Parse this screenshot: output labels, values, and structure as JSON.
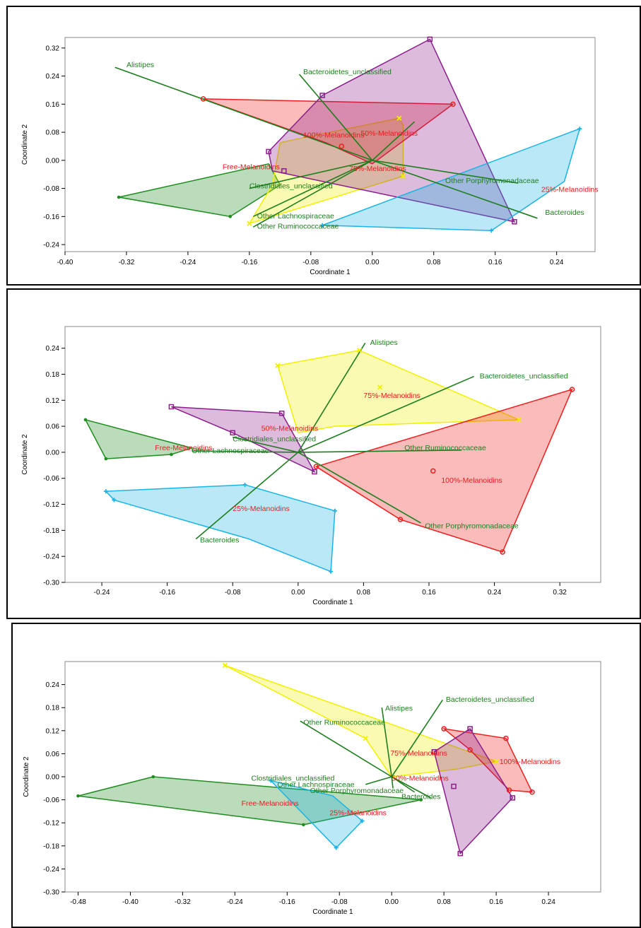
{
  "colors": {
    "Free-Melanoidins": "#1e8c1e",
    "25%-Melanoidins": "#1ab4e6",
    "50%-Melanoidins": "#8c1e8c",
    "75%-Melanoidins": "#f0f000",
    "100%-Melanoidins": "#f01e1e",
    "biplot": "#1e7e1e",
    "label_red": "#e02020"
  },
  "chart_data": [
    {
      "type": "scatter",
      "xlabel": "Coordinate 1",
      "ylabel": "Coordinate 2",
      "xlim": [
        -0.4,
        0.29
      ],
      "ylim": [
        -0.26,
        0.35
      ],
      "xticks": [
        "-0.40",
        "-0.32",
        "-0.24",
        "-0.16",
        "-0.08",
        "0.00",
        "0.08",
        "0.16",
        "0.24"
      ],
      "xtick_values": [
        -0.4,
        -0.32,
        -0.24,
        -0.16,
        -0.08,
        0.0,
        0.08,
        0.16,
        0.24
      ],
      "yticks": [
        "0.32",
        "0.24",
        "0.16",
        "0.08",
        "0.00",
        "-0.08",
        "-0.16",
        "-0.24"
      ],
      "ytick_values": [
        0.32,
        0.24,
        0.16,
        0.08,
        0.0,
        -0.08,
        -0.16,
        -0.24
      ],
      "groups": [
        {
          "name": "Free-Melanoidins",
          "marker": "dot",
          "hull": [
            [
              -0.33,
              -0.105
            ],
            [
              -0.185,
              -0.16
            ],
            [
              -0.12,
              -0.07
            ],
            [
              -0.135,
              -0.01
            ]
          ],
          "points": [
            [
              -0.33,
              -0.105
            ],
            [
              -0.185,
              -0.16
            ]
          ],
          "label": [
            -0.195,
            -0.025
          ]
        },
        {
          "name": "75%-Melanoidins",
          "marker": "x",
          "hull": [
            [
              -0.16,
              -0.18
            ],
            [
              -0.13,
              -0.07
            ],
            [
              -0.12,
              0.05
            ],
            [
              -0.1,
              0.06
            ],
            [
              0.035,
              0.12
            ],
            [
              0.04,
              0.1
            ],
            [
              0.04,
              -0.045
            ]
          ],
          "points": [
            [
              -0.16,
              -0.18
            ],
            [
              0.035,
              0.12
            ],
            [
              0.04,
              -0.045
            ]
          ],
          "label": [
            -0.03,
            -0.03
          ]
        },
        {
          "name": "100%-Melanoidins",
          "marker": "circle",
          "hull": [
            [
              -0.22,
              0.175
            ],
            [
              0.105,
              0.16
            ],
            [
              0.0,
              -0.01
            ],
            [
              -0.06,
              0.05
            ]
          ],
          "points": [
            [
              -0.22,
              0.175
            ],
            [
              0.105,
              0.16
            ],
            [
              -0.04,
              0.04
            ]
          ],
          "label": [
            -0.09,
            0.065
          ]
        },
        {
          "name": "50%-Melanoidins",
          "marker": "square",
          "hull": [
            [
              0.075,
              0.345
            ],
            [
              -0.065,
              0.185
            ],
            [
              -0.135,
              0.025
            ],
            [
              -0.13,
              -0.03
            ],
            [
              0.185,
              -0.175
            ]
          ],
          "points": [
            [
              0.075,
              0.345
            ],
            [
              -0.065,
              0.185
            ],
            [
              -0.135,
              0.025
            ],
            [
              -0.115,
              -0.03
            ],
            [
              0.185,
              -0.175
            ]
          ],
          "label": [
            -0.015,
            0.07
          ]
        },
        {
          "name": "25%-Melanoidins",
          "marker": "plus",
          "hull": [
            [
              -0.065,
              -0.185
            ],
            [
              0.155,
              -0.2
            ],
            [
              0.25,
              -0.06
            ],
            [
              0.27,
              0.09
            ]
          ],
          "points": [
            [
              -0.065,
              -0.185
            ],
            [
              0.155,
              -0.2
            ],
            [
              0.27,
              0.09
            ]
          ],
          "label": [
            0.22,
            -0.09
          ]
        }
      ],
      "vectors_origin": [
        0.0,
        0.0
      ],
      "vectors": [
        {
          "name": "Alistipes",
          "end": [
            -0.335,
            0.265
          ],
          "label": [
            -0.32,
            0.265
          ]
        },
        {
          "name": "Bacteroidetes_unclassified",
          "end": [
            -0.095,
            0.245
          ],
          "label": [
            -0.09,
            0.245
          ]
        },
        {
          "name": "Bacteroides",
          "end": [
            0.215,
            -0.165
          ],
          "label": [
            0.225,
            -0.155
          ]
        },
        {
          "name": "Other Porphyromonadaceae",
          "end": [
            0.19,
            -0.065
          ],
          "label": [
            0.095,
            -0.065
          ]
        },
        {
          "name": "Clostridiales_unclassified",
          "end": [
            -0.16,
            -0.08
          ],
          "label": [
            -0.16,
            -0.08
          ]
        },
        {
          "name": "Other Lachnospiraceae",
          "end": [
            -0.155,
            -0.16
          ],
          "label": [
            -0.15,
            -0.165
          ]
        },
        {
          "name": "Other Ruminococcaceae",
          "end": [
            -0.155,
            -0.19
          ],
          "label": [
            -0.15,
            -0.195
          ]
        }
      ],
      "extra_vector_end": [
        0.055,
        0.11
      ]
    },
    {
      "type": "scatter",
      "xlabel": "Coordinate 1",
      "ylabel": "Coordinate 2",
      "xlim": [
        -0.285,
        0.37
      ],
      "ylim": [
        -0.3,
        0.29
      ],
      "xticks": [
        "-0.24",
        "-0.16",
        "-0.08",
        "0.00",
        "0.08",
        "0.16",
        "0.24",
        "0.32"
      ],
      "xtick_values": [
        -0.24,
        -0.16,
        -0.08,
        0.0,
        0.08,
        0.16,
        0.24,
        0.32
      ],
      "yticks": [
        "0.24",
        "0.18",
        "0.12",
        "0.06",
        "0.00",
        "-0.06",
        "-0.12",
        "-0.18",
        "-0.24",
        "-0.30"
      ],
      "ytick_values": [
        0.24,
        0.18,
        0.12,
        0.06,
        0.0,
        -0.06,
        -0.12,
        -0.18,
        -0.24,
        -0.3
      ],
      "groups": [
        {
          "name": "75%-Melanoidins",
          "marker": "x",
          "hull": [
            [
              -0.025,
              0.2
            ],
            [
              0.075,
              0.235
            ],
            [
              0.27,
              0.075
            ],
            [
              0.045,
              0.06
            ],
            [
              0.0,
              0.045
            ]
          ],
          "points": [
            [
              -0.025,
              0.2
            ],
            [
              0.075,
              0.235
            ],
            [
              0.27,
              0.075
            ],
            [
              0.1,
              0.15
            ]
          ],
          "label": [
            0.08,
            0.125
          ]
        },
        {
          "name": "100%-Melanoidins",
          "marker": "circle",
          "hull": [
            [
              0.335,
              0.145
            ],
            [
              0.25,
              -0.23
            ],
            [
              0.125,
              -0.155
            ],
            [
              0.022,
              -0.033
            ]
          ],
          "points": [
            [
              0.335,
              0.145
            ],
            [
              0.25,
              -0.23
            ],
            [
              0.125,
              -0.155
            ],
            [
              0.022,
              -0.033
            ],
            [
              0.165,
              -0.043
            ]
          ],
          "label": [
            0.175,
            -0.07
          ]
        },
        {
          "name": "50%-Melanoidins",
          "marker": "square",
          "hull": [
            [
              -0.155,
              0.105
            ],
            [
              -0.02,
              0.09
            ],
            [
              0.02,
              -0.045
            ],
            [
              -0.08,
              0.045
            ]
          ],
          "points": [
            [
              -0.155,
              0.105
            ],
            [
              -0.02,
              0.09
            ],
            [
              0.02,
              -0.045
            ],
            [
              -0.08,
              0.045
            ]
          ],
          "label": [
            -0.045,
            0.05
          ]
        },
        {
          "name": "Free-Melanoidins",
          "marker": "dot",
          "hull": [
            [
              -0.26,
              0.075
            ],
            [
              -0.13,
              0.01
            ],
            [
              -0.155,
              -0.005
            ],
            [
              -0.235,
              -0.015
            ]
          ],
          "points": [
            [
              -0.26,
              0.075
            ],
            [
              -0.235,
              -0.015
            ],
            [
              -0.155,
              -0.005
            ]
          ],
          "label": [
            -0.175,
            0.005
          ]
        },
        {
          "name": "25%-Melanoidins",
          "marker": "plus",
          "hull": [
            [
              -0.235,
              -0.09
            ],
            [
              -0.065,
              -0.075
            ],
            [
              0.045,
              -0.135
            ],
            [
              0.04,
              -0.275
            ],
            [
              -0.06,
              -0.2
            ],
            [
              -0.225,
              -0.11
            ]
          ],
          "points": [
            [
              -0.235,
              -0.09
            ],
            [
              -0.225,
              -0.11
            ],
            [
              -0.065,
              -0.075
            ],
            [
              0.045,
              -0.135
            ],
            [
              0.04,
              -0.275
            ]
          ],
          "label": [
            -0.08,
            -0.135
          ]
        }
      ],
      "vectors_origin": [
        0.0,
        0.0
      ],
      "vectors": [
        {
          "name": "Alistipes",
          "end": [
            0.082,
            0.252
          ],
          "label": [
            0.088,
            0.248
          ]
        },
        {
          "name": "Bacteroidetes_unclassified",
          "end": [
            0.215,
            0.175
          ],
          "label": [
            0.222,
            0.17
          ]
        },
        {
          "name": "Other Ruminococcaceae",
          "end": [
            0.2,
            0.005
          ],
          "label": [
            0.13,
            0.005
          ]
        },
        {
          "name": "Other Porphyromonadaceae",
          "end": [
            0.15,
            -0.163
          ],
          "label": [
            0.155,
            -0.175
          ]
        },
        {
          "name": "Bacteroides",
          "end": [
            -0.125,
            -0.2
          ],
          "label": [
            -0.12,
            -0.208
          ]
        },
        {
          "name": "Clostridiales_unclassified",
          "end": [
            -0.08,
            0.035
          ],
          "label": [
            -0.08,
            0.025
          ]
        },
        {
          "name": "Other Lachnospiraceae",
          "end": [
            -0.13,
            0.003
          ],
          "label": [
            -0.13,
            -0.002
          ]
        }
      ]
    },
    {
      "type": "scatter",
      "xlabel": "Coordinate 1",
      "ylabel": "Coordinate 2",
      "xlim": [
        -0.5,
        0.32
      ],
      "ylim": [
        -0.3,
        0.3
      ],
      "xticks": [
        "-0.48",
        "-0.40",
        "-0.32",
        "-0.24",
        "-0.16",
        "-0.08",
        "0.00",
        "0.08",
        "0.16",
        "0.24"
      ],
      "xtick_values": [
        -0.48,
        -0.4,
        -0.32,
        -0.24,
        -0.16,
        -0.08,
        0.0,
        0.08,
        0.16,
        0.24
      ],
      "yticks": [
        "0.24",
        "0.18",
        "0.12",
        "0.06",
        "0.00",
        "-0.06",
        "-0.12",
        "-0.18",
        "-0.24",
        "-0.30"
      ],
      "ytick_values": [
        0.24,
        0.18,
        0.12,
        0.06,
        0.0,
        -0.06,
        -0.12,
        -0.18,
        -0.24,
        -0.3
      ],
      "groups": [
        {
          "name": "75%-Melanoidins",
          "marker": "x",
          "hull": [
            [
              -0.255,
              0.29
            ],
            [
              0.16,
              0.04
            ],
            [
              0.1,
              0.02
            ],
            [
              0.0,
              0.0
            ],
            [
              -0.04,
              0.1
            ]
          ],
          "points": [
            [
              -0.255,
              0.29
            ],
            [
              0.16,
              0.04
            ],
            [
              -0.04,
              0.1
            ]
          ],
          "label": [
            -0.002,
            0.055
          ]
        },
        {
          "name": "100%-Melanoidins",
          "marker": "circle",
          "hull": [
            [
              0.08,
              0.125
            ],
            [
              0.175,
              0.1
            ],
            [
              0.215,
              -0.04
            ],
            [
              0.18,
              -0.035
            ],
            [
              0.12,
              0.07
            ]
          ],
          "points": [
            [
              0.08,
              0.125
            ],
            [
              0.175,
              0.1
            ],
            [
              0.215,
              -0.04
            ],
            [
              0.18,
              -0.035
            ],
            [
              0.12,
              0.07
            ]
          ],
          "label": [
            0.165,
            0.033
          ]
        },
        {
          "name": "50%-Melanoidins",
          "marker": "square",
          "hull": [
            [
              0.065,
              0.065
            ],
            [
              0.12,
              0.125
            ],
            [
              0.185,
              -0.055
            ],
            [
              0.105,
              -0.2
            ]
          ],
          "points": [
            [
              0.065,
              0.065
            ],
            [
              0.12,
              0.125
            ],
            [
              0.185,
              -0.055
            ],
            [
              0.105,
              -0.2
            ],
            [
              0.095,
              -0.025
            ]
          ],
          "label": [
            0.0,
            -0.01
          ]
        },
        {
          "name": "Free-Melanoidins",
          "marker": "dot",
          "hull": [
            [
              -0.365,
              0.0
            ],
            [
              -0.48,
              -0.05
            ],
            [
              -0.135,
              -0.125
            ],
            [
              0.045,
              -0.06
            ]
          ],
          "points": [
            [
              -0.365,
              0.0
            ],
            [
              -0.48,
              -0.05
            ],
            [
              -0.135,
              -0.125
            ],
            [
              0.045,
              -0.06
            ]
          ],
          "label": [
            -0.23,
            -0.075
          ]
        },
        {
          "name": "25%-Melanoidins",
          "marker": "plus",
          "hull": [
            [
              -0.185,
              -0.01
            ],
            [
              -0.09,
              -0.05
            ],
            [
              -0.045,
              -0.115
            ],
            [
              -0.085,
              -0.185
            ]
          ],
          "points": [
            [
              -0.185,
              -0.01
            ],
            [
              -0.045,
              -0.115
            ],
            [
              -0.085,
              -0.185
            ]
          ],
          "label": [
            -0.095,
            -0.1
          ]
        }
      ],
      "vectors_origin": [
        0.0,
        0.0
      ],
      "vectors": [
        {
          "name": "Alistipes",
          "end": [
            -0.015,
            0.18
          ],
          "label": [
            -0.01,
            0.172
          ]
        },
        {
          "name": "Bacteroidetes_unclassified",
          "end": [
            0.078,
            0.2
          ],
          "label": [
            0.083,
            0.195
          ]
        },
        {
          "name": "Other Ruminococcaceae",
          "end": [
            -0.14,
            0.145
          ],
          "label": [
            -0.135,
            0.135
          ]
        },
        {
          "name": "Clostridiales_unclassified",
          "end": [
            -0.04,
            -0.02
          ],
          "label": [
            -0.215,
            -0.01
          ]
        },
        {
          "name": "Other Lachnospiraceae",
          "end": [
            0.002,
            -0.03
          ],
          "label": [
            -0.175,
            -0.027
          ]
        },
        {
          "name": "Other Porphyromonadaceae",
          "end": [
            0.035,
            -0.04
          ],
          "label": [
            -0.125,
            -0.042
          ]
        },
        {
          "name": "Bacteroides",
          "end": [
            0.06,
            -0.055
          ],
          "label": [
            0.015,
            -0.058
          ]
        }
      ]
    }
  ]
}
